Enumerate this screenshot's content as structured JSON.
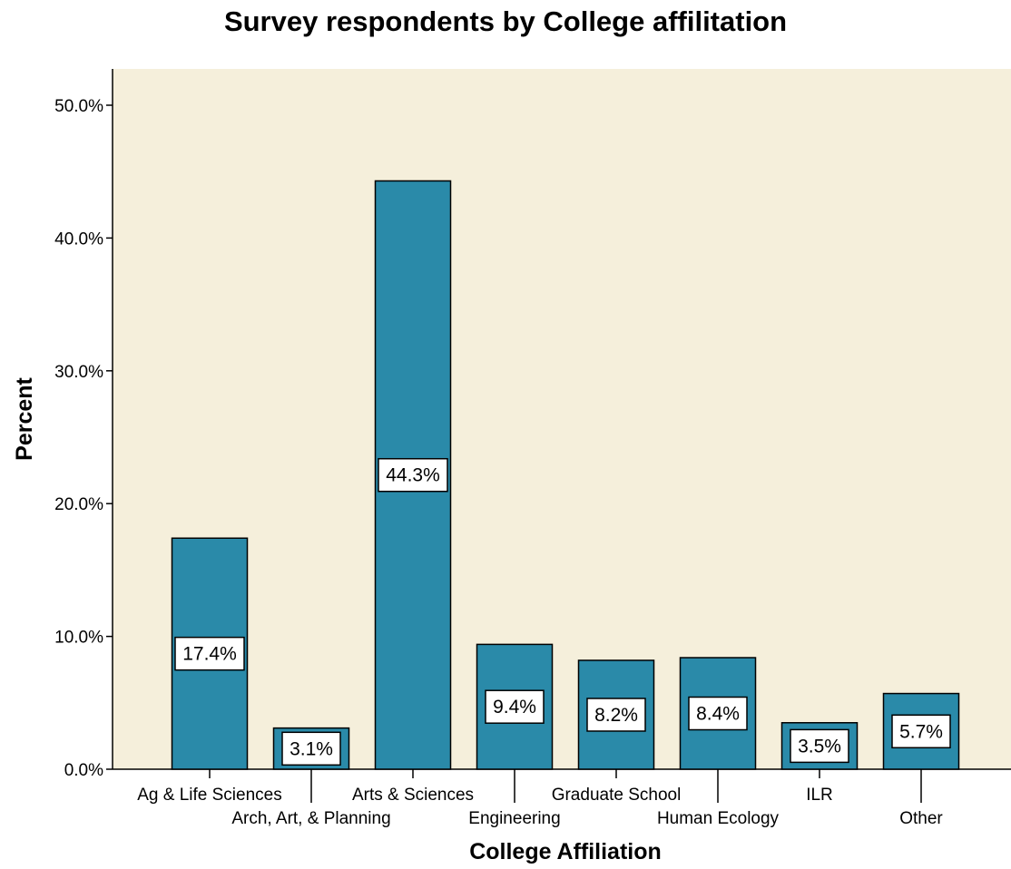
{
  "chart_data": {
    "type": "bar",
    "title": "Survey respondents by College affilitation",
    "xlabel": "College Affiliation",
    "ylabel": "Percent",
    "categories": [
      "Ag & Life Sciences",
      "Arch, Art, & Planning",
      "Arts & Sciences",
      "Engineering",
      "Graduate School",
      "Human Ecology",
      "ILR",
      "Other"
    ],
    "values": [
      17.4,
      3.1,
      44.3,
      9.4,
      8.2,
      8.4,
      3.5,
      5.7
    ],
    "data_labels": [
      "17.4%",
      "3.1%",
      "44.3%",
      "9.4%",
      "8.2%",
      "8.4%",
      "3.5%",
      "5.7%"
    ],
    "yticks": [
      0,
      10,
      20,
      30,
      40,
      50
    ],
    "ytick_labels": [
      "0.0%",
      "10.0%",
      "20.0%",
      "30.0%",
      "40.0%",
      "50.0%"
    ],
    "ylim": [
      0,
      50
    ],
    "grid": false,
    "colors": {
      "bar": "#2a8aa9",
      "plot_background": "#f5efdb",
      "bar_border": "#000000"
    }
  }
}
